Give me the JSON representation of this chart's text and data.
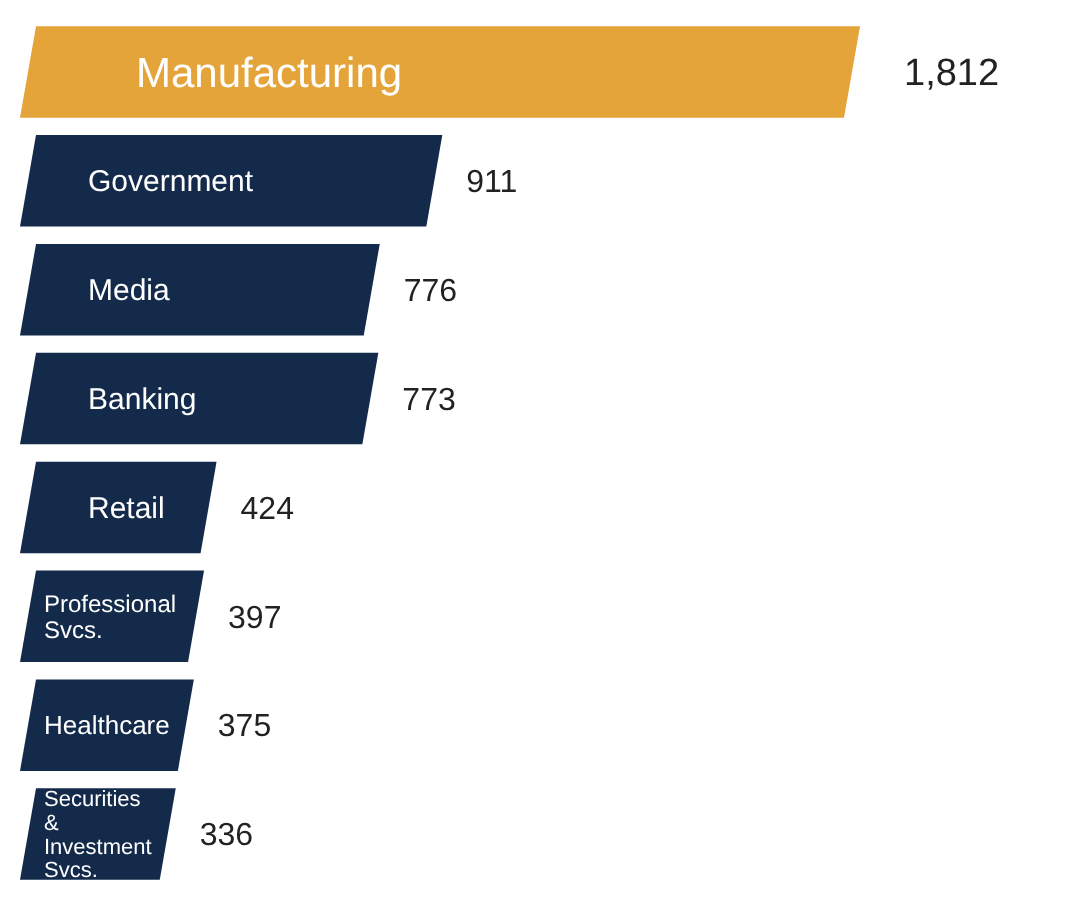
{
  "chart_data": {
    "type": "bar",
    "orientation": "horizontal",
    "categories": [
      "Manufacturing",
      "Government",
      "Media",
      "Banking",
      "Retail",
      "Professional Svcs.",
      "Healthcare",
      "Securities & Investment Svcs."
    ],
    "values": [
      1812,
      911,
      776,
      773,
      424,
      397,
      375,
      336
    ],
    "value_labels": [
      "1,812",
      "911",
      "776",
      "773",
      "424",
      "397",
      "375",
      "336"
    ],
    "colors": [
      "#e5a43a",
      "#132a4b",
      "#132a4b",
      "#132a4b",
      "#132a4b",
      "#132a4b",
      "#132a4b",
      "#132a4b"
    ]
  }
}
